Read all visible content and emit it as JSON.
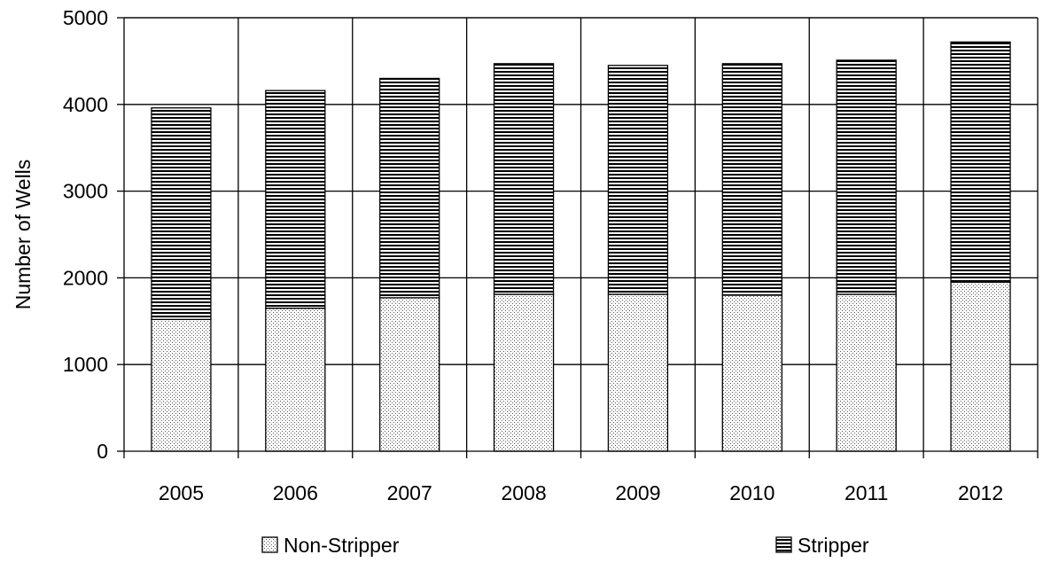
{
  "chart_data": {
    "type": "bar",
    "stacked": true,
    "categories": [
      "2005",
      "2006",
      "2007",
      "2008",
      "2009",
      "2010",
      "2011",
      "2012"
    ],
    "series": [
      {
        "name": "Non-Stripper",
        "values": [
          1520,
          1650,
          1770,
          1810,
          1810,
          1800,
          1810,
          1950
        ],
        "pattern": "dotted"
      },
      {
        "name": "Stripper",
        "values": [
          2440,
          2510,
          2530,
          2660,
          2640,
          2670,
          2700,
          2770
        ],
        "pattern": "horizontal-lines"
      }
    ],
    "ylabel": "Number of Wells",
    "xlabel": "",
    "ylim": [
      0,
      5000
    ],
    "yticks": [
      "0",
      "1000",
      "2000",
      "3000",
      "4000",
      "5000"
    ],
    "grid": true,
    "legend_position": "bottom"
  }
}
